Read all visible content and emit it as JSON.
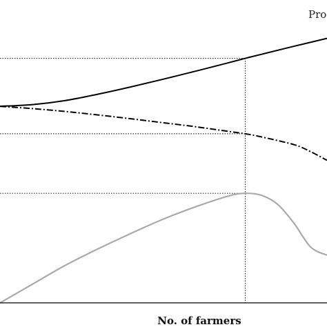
{
  "chart_data": {
    "type": "line",
    "xlabel": "No. of farmers",
    "ylabel": "",
    "title": "",
    "annotation_top_right": "Pro",
    "reference_x": 7.5,
    "xlim": [
      0,
      10
    ],
    "ylim": [
      0,
      10
    ],
    "grid": false,
    "series": [
      {
        "style": "solid",
        "color": "#000000",
        "x": [
          0,
          1,
          2,
          3,
          4,
          5,
          6,
          7,
          7.5,
          8,
          9,
          10
        ],
        "y": [
          6.8,
          6.86,
          7.0,
          7.22,
          7.47,
          7.74,
          8.02,
          8.31,
          8.46,
          8.6,
          8.88,
          9.15
        ]
      },
      {
        "style": "dash-dot",
        "color": "#000000",
        "x": [
          0,
          1,
          2,
          3,
          4,
          5,
          6,
          7,
          7.5,
          8,
          9,
          9.5,
          10
        ],
        "y": [
          6.8,
          6.72,
          6.62,
          6.5,
          6.37,
          6.23,
          6.09,
          5.93,
          5.85,
          5.74,
          5.47,
          5.23,
          4.93
        ]
      },
      {
        "style": "solid",
        "color": "#aaaaaa",
        "x": [
          0,
          1,
          2,
          3,
          4,
          5,
          6,
          7,
          7.5,
          8,
          8.5,
          9,
          9.5,
          10
        ],
        "y": [
          0.0,
          0.65,
          1.3,
          1.87,
          2.4,
          2.9,
          3.33,
          3.7,
          3.79,
          3.72,
          3.4,
          2.74,
          1.93,
          1.65
        ]
      }
    ]
  }
}
